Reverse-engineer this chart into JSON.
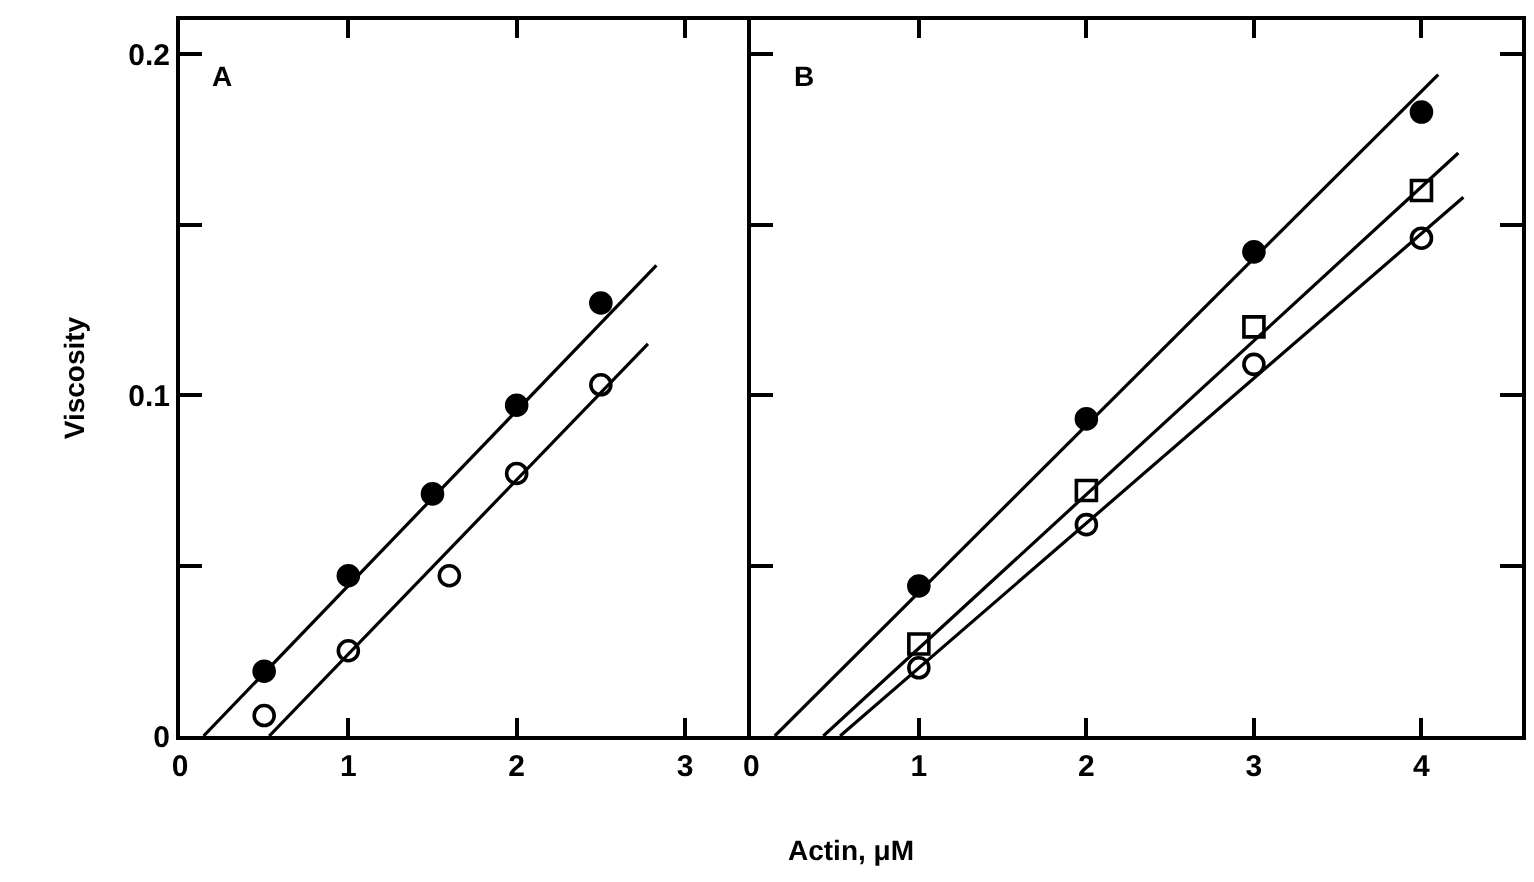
{
  "chart_data": [
    {
      "type": "scatter",
      "title": "A",
      "ylabel": "Viscosity",
      "xlim": [
        0,
        3.37
      ],
      "xticks": [
        0,
        1,
        2,
        3
      ],
      "ylim": [
        0,
        0.21
      ],
      "yticks": [
        0,
        {
          "value": 0.05,
          "label": null
        },
        0.1,
        {
          "value": 0.15,
          "label": null
        },
        0.2
      ],
      "series": [
        {
          "color": "#000000",
          "marker": "circle",
          "x": [
            0.5,
            1,
            1.5,
            2,
            2.5
          ],
          "values": [
            0.019,
            0.047,
            0.071,
            0.097,
            0.127
          ]
        },
        {
          "color": "#ffffff",
          "marker": "circle",
          "x": [
            0.5,
            1,
            1.6,
            2,
            2.5
          ],
          "values": [
            0.006,
            0.025,
            0.047,
            0.077,
            0.103
          ]
        },
        {
          "type": "line",
          "color": "#000000",
          "marker": "none",
          "x": [
            0.14,
            2.83
          ],
          "values": [
            0,
            0.138
          ]
        },
        {
          "type": "line",
          "color": "#000000",
          "marker": "none",
          "x": [
            0.53,
            2.78
          ],
          "values": [
            0,
            0.115
          ]
        }
      ]
    },
    {
      "type": "scatter",
      "title": "B",
      "xlabel": "Actin, μM",
      "xlim": [
        0,
        4.6
      ],
      "xticks": [
        0,
        1,
        2,
        3,
        4
      ],
      "ylim": [
        0,
        0.21
      ],
      "yticks": [
        {
          "value": 0,
          "label": null
        },
        {
          "value": 0.05,
          "label": null
        },
        {
          "value": 0.1,
          "label": null
        },
        {
          "value": 0.15,
          "label": null
        },
        {
          "value": 0.2,
          "label": null
        }
      ],
      "tick_labels": "x",
      "series": [
        {
          "color": "#000000",
          "marker": "circle",
          "x": [
            1,
            2,
            3,
            4
          ],
          "values": [
            0.044,
            0.093,
            0.142,
            0.183
          ]
        },
        {
          "color": "#ffffff",
          "marker": "square",
          "x": [
            1,
            2,
            3,
            4
          ],
          "values": [
            0.027,
            0.072,
            0.12,
            0.16
          ]
        },
        {
          "color": "#ffffff",
          "marker": "circle",
          "x": [
            1,
            2,
            3,
            4
          ],
          "values": [
            0.02,
            0.062,
            0.109,
            0.146
          ]
        },
        {
          "type": "line",
          "color": "#000000",
          "marker": "none",
          "x": [
            0.14,
            4.1
          ],
          "values": [
            0,
            0.194
          ]
        },
        {
          "type": "line",
          "color": "#000000",
          "marker": "none",
          "x": [
            0.43,
            4.22
          ],
          "values": [
            0,
            0.171
          ]
        },
        {
          "type": "line",
          "color": "#000000",
          "marker": "none",
          "x": [
            0.53,
            4.25
          ],
          "values": [
            0,
            0.158
          ]
        }
      ]
    }
  ]
}
